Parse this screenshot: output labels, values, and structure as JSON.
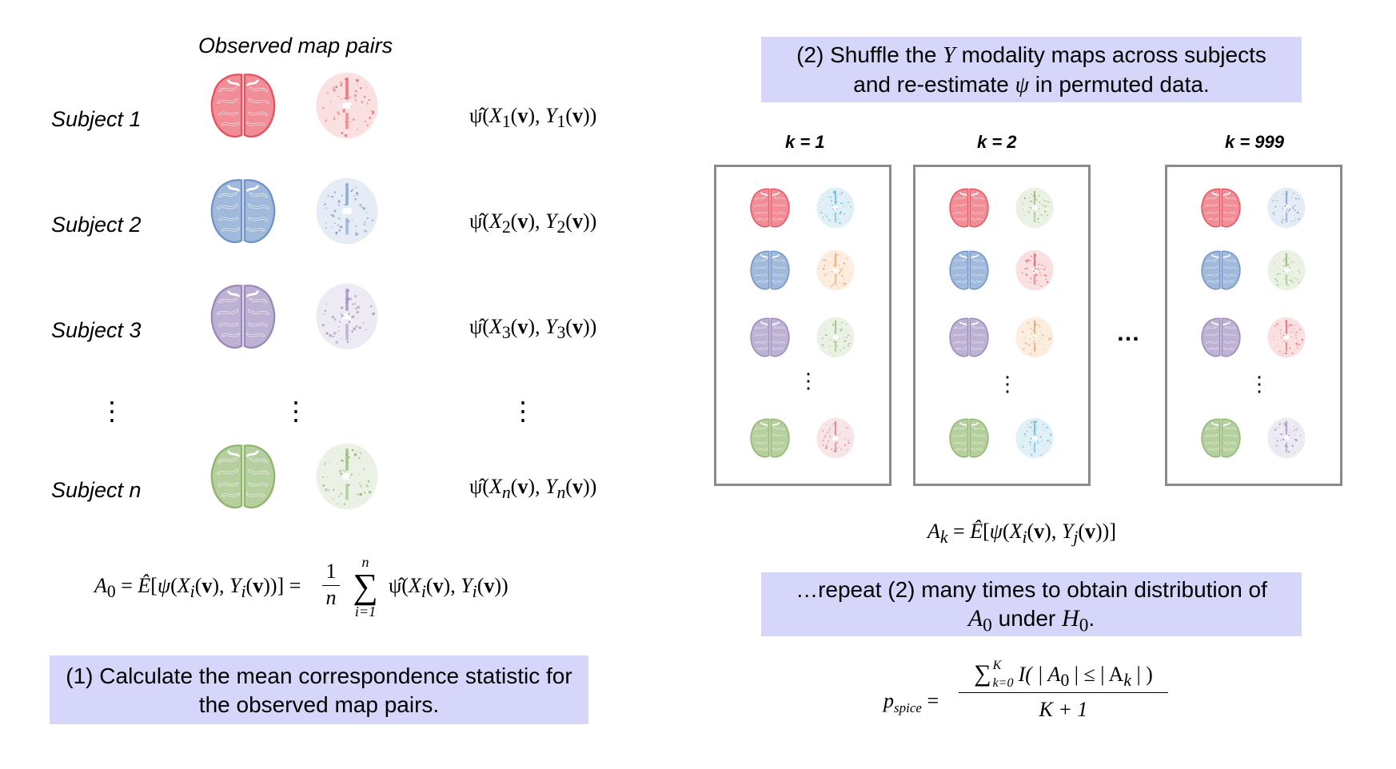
{
  "left": {
    "title": "Observed map pairs",
    "subjects": [
      {
        "label": "Subject 1",
        "color": "#e8505e",
        "formula_sub": "1"
      },
      {
        "label": "Subject 2",
        "color": "#6f93c6",
        "formula_sub": "2"
      },
      {
        "label": "Subject 3",
        "color": "#9a88bb",
        "formula_sub": "3"
      },
      {
        "label": "Subject n",
        "color": "#8fb56c",
        "formula_sub": "n"
      }
    ],
    "vdots": "⋮",
    "mean_formula": {
      "lhs": "A",
      "lhs_sub": "0",
      "eq1": "= Ê[ψ(X",
      "mid": "(v), Y",
      "mid2": "(v))] =",
      "frac_num": "1",
      "frac_den": "n",
      "sum_top": "n",
      "sum_bottom": "i=1",
      "tail": "ψ̂(X",
      "tail2": "(v), Y",
      "tail3": "(v))",
      "index": "i"
    },
    "note": "(1) Calculate the mean correspondence statistic for the observed map pairs."
  },
  "right": {
    "note_top_line1_a": "(2) Shuffle the ",
    "note_top_line1_var": "Y",
    "note_top_line1_b": " modality maps across subjects",
    "note_top_line2_a": "and re-estimate ",
    "note_top_line2_var": "ψ",
    "note_top_line2_b": " in permuted data.",
    "permutations": [
      {
        "label": "k = 1"
      },
      {
        "label": "k = 2"
      },
      {
        "label": "k = 999"
      }
    ],
    "ellipsis": "…",
    "vdots": "⋮",
    "ak_formula": {
      "lhs": "A",
      "lhs_sub": "k",
      "eq": "= Ê[ψ(X",
      "i": "i",
      "mid": "(v), Y",
      "j": "j",
      "end": "(v))]"
    },
    "note_bottom_line1": "…repeat (2) many times to obtain distribution of",
    "note_bottom_line2_a": "A",
    "note_bottom_line2_sub": "0",
    "note_bottom_line2_b": " under ",
    "note_bottom_line2_c": "H",
    "note_bottom_line2_sub2": "0",
    "note_bottom_line2_d": ".",
    "pspice": {
      "lhs": "p",
      "lhs_sub": "spice",
      "eq": "=",
      "num_sum": "∑",
      "num_sup": "K",
      "num_sub": "k=0",
      "num_body": "I( | A",
      "num_body_sub": "0",
      "num_body2": " | ≤ | A",
      "num_body_sub2": "k",
      "num_body3": " | )",
      "den": "K + 1"
    }
  },
  "colors": {
    "red": "#e8505e",
    "blue": "#6f93c6",
    "purple": "#9a88bb",
    "green": "#8fb56c",
    "cyan": "#5aaed0",
    "orange": "#e79a55",
    "note_bg": "#d6d6fb"
  },
  "permutation_pairs": [
    [
      [
        "#e8505e",
        "#5aaed0"
      ],
      [
        "#6f93c6",
        "#e79a55"
      ],
      [
        "#9a88bb",
        "#8fb56c"
      ],
      [
        "#8fb56c",
        "#d0707a"
      ]
    ],
    [
      [
        "#e8505e",
        "#8fb56c"
      ],
      [
        "#6f93c6",
        "#e8505e"
      ],
      [
        "#9a88bb",
        "#e79a55"
      ],
      [
        "#8fb56c",
        "#5aaed0"
      ]
    ],
    [
      [
        "#e8505e",
        "#6f93c6"
      ],
      [
        "#6f93c6",
        "#8fb56c"
      ],
      [
        "#9a88bb",
        "#e8505e"
      ],
      [
        "#8fb56c",
        "#9a88bb"
      ]
    ]
  ]
}
